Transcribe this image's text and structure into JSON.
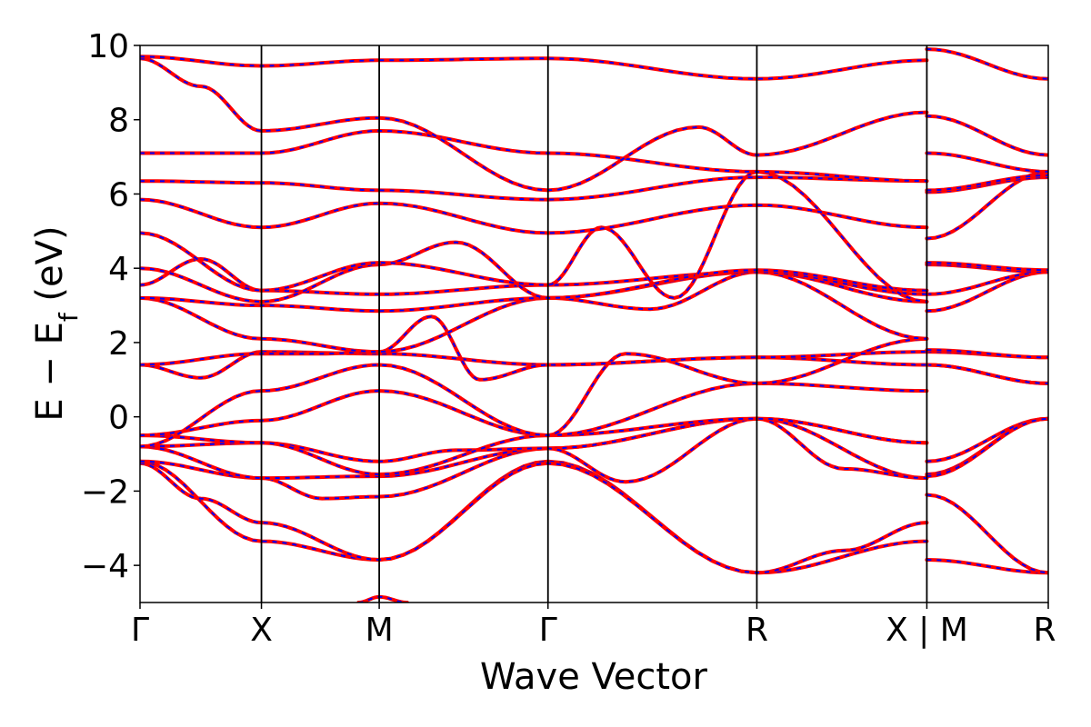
{
  "chart_data": {
    "type": "line",
    "title": "",
    "xlabel": "Wave Vector",
    "ylabel_main": "E − E",
    "ylabel_sub": "f",
    "ylabel_unit": " (eV)",
    "ylim": [
      -5,
      10
    ],
    "y_ticks": [
      -4,
      -2,
      0,
      2,
      4,
      6,
      8,
      10
    ],
    "y_tick_labels": [
      "−4",
      "−2",
      "0",
      "2",
      "4",
      "6",
      "8",
      "10"
    ],
    "k_points": [
      0,
      0.5,
      0.985,
      1.68,
      2.54,
      3.24,
      3.74
    ],
    "k_point_labels": [
      "Γ",
      "X",
      "M",
      "Γ",
      "R",
      "X | M",
      "R"
    ],
    "grid": false,
    "series_styles": [
      {
        "role": "solid",
        "color": "#ff0000"
      },
      {
        "role": "dashed",
        "color": "#0000ff"
      }
    ],
    "bands": [
      {
        "x": [
          0,
          0.5,
          0.985,
          1.68,
          2.54,
          3.24,
          3.24,
          3.74
        ],
        "y": [
          -1.2,
          -3.35,
          -3.85,
          -1.2,
          -4.2,
          -3.35,
          -3.85,
          -4.2
        ]
      },
      {
        "x": [
          0,
          0.25,
          0.5,
          0.985,
          1.68,
          2.54,
          2.9,
          3.24,
          3.24,
          3.74
        ],
        "y": [
          -1.25,
          -2.2,
          -2.85,
          -3.85,
          -1.25,
          -4.2,
          -3.6,
          -2.85,
          -2.1,
          -4.2
        ]
      },
      {
        "x": [
          0,
          0.5,
          0.75,
          0.985,
          1.68,
          2.54,
          3.24,
          3.24,
          3.74
        ],
        "y": [
          -1.2,
          -1.65,
          -2.2,
          -2.15,
          -0.85,
          -0.05,
          -1.65,
          -1.55,
          -0.05
        ]
      },
      {
        "x": [
          0,
          0.5,
          0.985,
          1.68,
          2.54,
          2.9,
          3.24,
          3.24,
          3.74
        ],
        "y": [
          -0.8,
          -1.65,
          -1.6,
          -0.85,
          -0.05,
          -1.4,
          -1.65,
          -1.2,
          -0.05
        ]
      },
      {
        "x": [
          0,
          0.5,
          0.985,
          1.3,
          1.68,
          2.0,
          2.54,
          3.24,
          3.24,
          3.74
        ],
        "y": [
          -0.8,
          -0.7,
          -1.2,
          -0.9,
          -0.85,
          -1.75,
          -0.05,
          -0.7,
          -1.6,
          -0.05
        ]
      },
      {
        "x": [
          0,
          0.5,
          0.985,
          1.68,
          2.54,
          3.24
        ],
        "y": [
          -0.5,
          -0.7,
          -1.55,
          -0.5,
          -0.05,
          -0.7
        ]
      },
      {
        "x": [
          0,
          0.5,
          0.985,
          1.68,
          2.54,
          3.24,
          3.24,
          3.74
        ],
        "y": [
          -0.5,
          -0.1,
          0.7,
          -0.5,
          0.9,
          0.7,
          1.4,
          0.9
        ]
      },
      {
        "x": [
          0,
          0.5,
          0.985,
          1.68,
          2.0,
          2.54,
          3.24,
          3.24,
          3.74
        ],
        "y": [
          -0.8,
          0.7,
          1.4,
          -0.5,
          1.7,
          0.9,
          2.1,
          1.4,
          0.9
        ]
      },
      {
        "x": [
          0,
          0.25,
          0.5,
          0.985,
          1.68,
          2.54,
          3.24,
          3.24,
          3.74
        ],
        "y": [
          1.4,
          1.05,
          1.75,
          1.7,
          1.4,
          1.6,
          1.4,
          1.75,
          1.6
        ]
      },
      {
        "x": [
          0,
          0.5,
          0.75,
          0.985,
          1.2,
          1.4,
          1.68,
          2.54,
          3.24,
          3.24,
          3.74
        ],
        "y": [
          1.4,
          1.7,
          1.7,
          1.75,
          2.7,
          1.0,
          1.4,
          1.6,
          1.75,
          1.8,
          1.6
        ]
      },
      {
        "x": [
          0,
          0.5,
          0.985,
          1.68,
          2.54,
          3.24,
          3.24,
          3.74
        ],
        "y": [
          3.2,
          2.1,
          1.75,
          3.2,
          3.9,
          2.1,
          2.85,
          3.9
        ]
      },
      {
        "x": [
          0,
          0.5,
          0.985,
          1.68,
          2.1,
          2.54,
          3.24,
          3.24,
          3.74
        ],
        "y": [
          3.2,
          3.0,
          2.85,
          3.2,
          2.9,
          3.9,
          3.1,
          3.3,
          3.9
        ]
      },
      {
        "x": [
          0,
          0.25,
          0.5,
          0.985,
          1.68,
          2.54,
          3.24,
          3.24,
          3.74
        ],
        "y": [
          3.55,
          4.25,
          3.4,
          3.3,
          3.55,
          3.9,
          3.3,
          4.1,
          3.9
        ]
      },
      {
        "x": [
          0,
          0.5,
          0.985,
          1.3,
          1.68,
          2.54,
          3.24,
          3.24,
          3.74
        ],
        "y": [
          4.0,
          3.1,
          4.1,
          4.7,
          3.2,
          3.95,
          3.4,
          4.15,
          3.95
        ]
      },
      {
        "x": [
          0,
          0.5,
          0.985,
          1.68,
          1.9,
          2.2,
          2.54,
          3.24,
          3.24,
          3.74
        ],
        "y": [
          4.95,
          3.4,
          4.15,
          3.55,
          5.1,
          3.2,
          6.6,
          3.1,
          4.8,
          6.6
        ]
      },
      {
        "x": [
          0,
          0.5,
          0.985,
          1.68,
          2.54,
          3.24,
          3.24,
          3.74
        ],
        "y": [
          5.85,
          5.1,
          5.75,
          4.95,
          5.7,
          5.1,
          6.05,
          6.45
        ]
      },
      {
        "x": [
          0,
          0.5,
          0.985,
          1.68,
          2.54,
          3.24,
          3.24,
          3.74
        ],
        "y": [
          6.35,
          6.3,
          6.1,
          5.85,
          6.45,
          6.35,
          6.1,
          6.5
        ]
      },
      {
        "x": [
          0,
          0.5,
          0.985,
          1.68,
          2.54,
          3.24,
          3.24,
          3.74
        ],
        "y": [
          7.1,
          7.1,
          7.7,
          7.1,
          6.6,
          6.35,
          7.1,
          6.6
        ]
      },
      {
        "x": [
          0,
          0.25,
          0.5,
          0.985,
          1.68,
          2.3,
          2.54,
          3.24,
          3.24,
          3.74
        ],
        "y": [
          9.65,
          8.9,
          7.7,
          8.05,
          6.1,
          7.8,
          7.05,
          8.2,
          8.1,
          7.05
        ]
      },
      {
        "x": [
          0,
          0.5,
          0.985,
          1.68,
          2.54,
          3.24,
          3.24,
          3.74
        ],
        "y": [
          9.7,
          9.45,
          9.6,
          9.65,
          9.1,
          9.6,
          9.9,
          9.1
        ]
      },
      {
        "x": [
          0.9,
          0.985,
          1.1
        ],
        "y": [
          -5.0,
          -4.85,
          -5.0
        ]
      }
    ]
  }
}
